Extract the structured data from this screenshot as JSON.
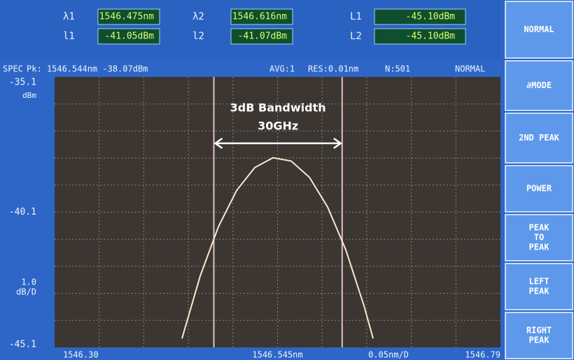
{
  "header": {
    "rows": [
      [
        {
          "label": "λ1",
          "value": "1546.475nm"
        },
        {
          "label": "λ2",
          "value": "1546.616nm"
        },
        {
          "label": "L1",
          "value": "-45.10dBm"
        }
      ],
      [
        {
          "label": "l1",
          "value": "-41.05dBm"
        },
        {
          "label": "l2",
          "value": "-41.07dBm"
        },
        {
          "label": "L2",
          "value": "-45.10dBm"
        }
      ]
    ]
  },
  "status": [
    "SPEC",
    "Pk: 1546.544nm -38.07dBm",
    "AVG:1",
    "RES:0.01nm",
    "N:501",
    "NORMAL"
  ],
  "buttons": [
    [
      "NORMAL"
    ],
    [
      "∂MODE"
    ],
    [
      "2ND PEAK"
    ],
    [
      "POWER"
    ],
    [
      "PEAK",
      "TO",
      "PEAK"
    ],
    [
      "LEFT",
      "PEAK"
    ],
    [
      "RIGHT",
      "PEAK"
    ]
  ],
  "chart_data": {
    "type": "line",
    "x": [
      1546.44,
      1546.46,
      1546.48,
      1546.5,
      1546.52,
      1546.54,
      1546.56,
      1546.58,
      1546.6,
      1546.62,
      1546.64,
      1546.65
    ],
    "values": [
      -44.77,
      -42.46,
      -40.64,
      -39.3,
      -38.45,
      -38.09,
      -38.21,
      -38.81,
      -39.91,
      -41.49,
      -43.56,
      -44.77
    ],
    "color": "#f4ead0",
    "xlim": [
      1546.3,
      1546.79
    ],
    "xticks": [
      {
        "value": 1546.3,
        "label": "1546.30"
      },
      {
        "value": 1546.545,
        "label": "1546.545nm"
      },
      1546.79
    ],
    "x_scale_label": "0.05nm/D",
    "ylim": [
      -45.1,
      -35.1
    ],
    "yticks": [
      -35.1,
      -40.1,
      -45.1
    ],
    "y_unit": "dBm",
    "y_scale_label": [
      "1.0",
      "dB/D"
    ],
    "grid": {
      "x_divisions": 10,
      "y_divisions": 10
    },
    "vlines": [
      1546.475,
      1546.616
    ],
    "annotations": [
      "3dB Bandwidth",
      "30GHz"
    ]
  }
}
